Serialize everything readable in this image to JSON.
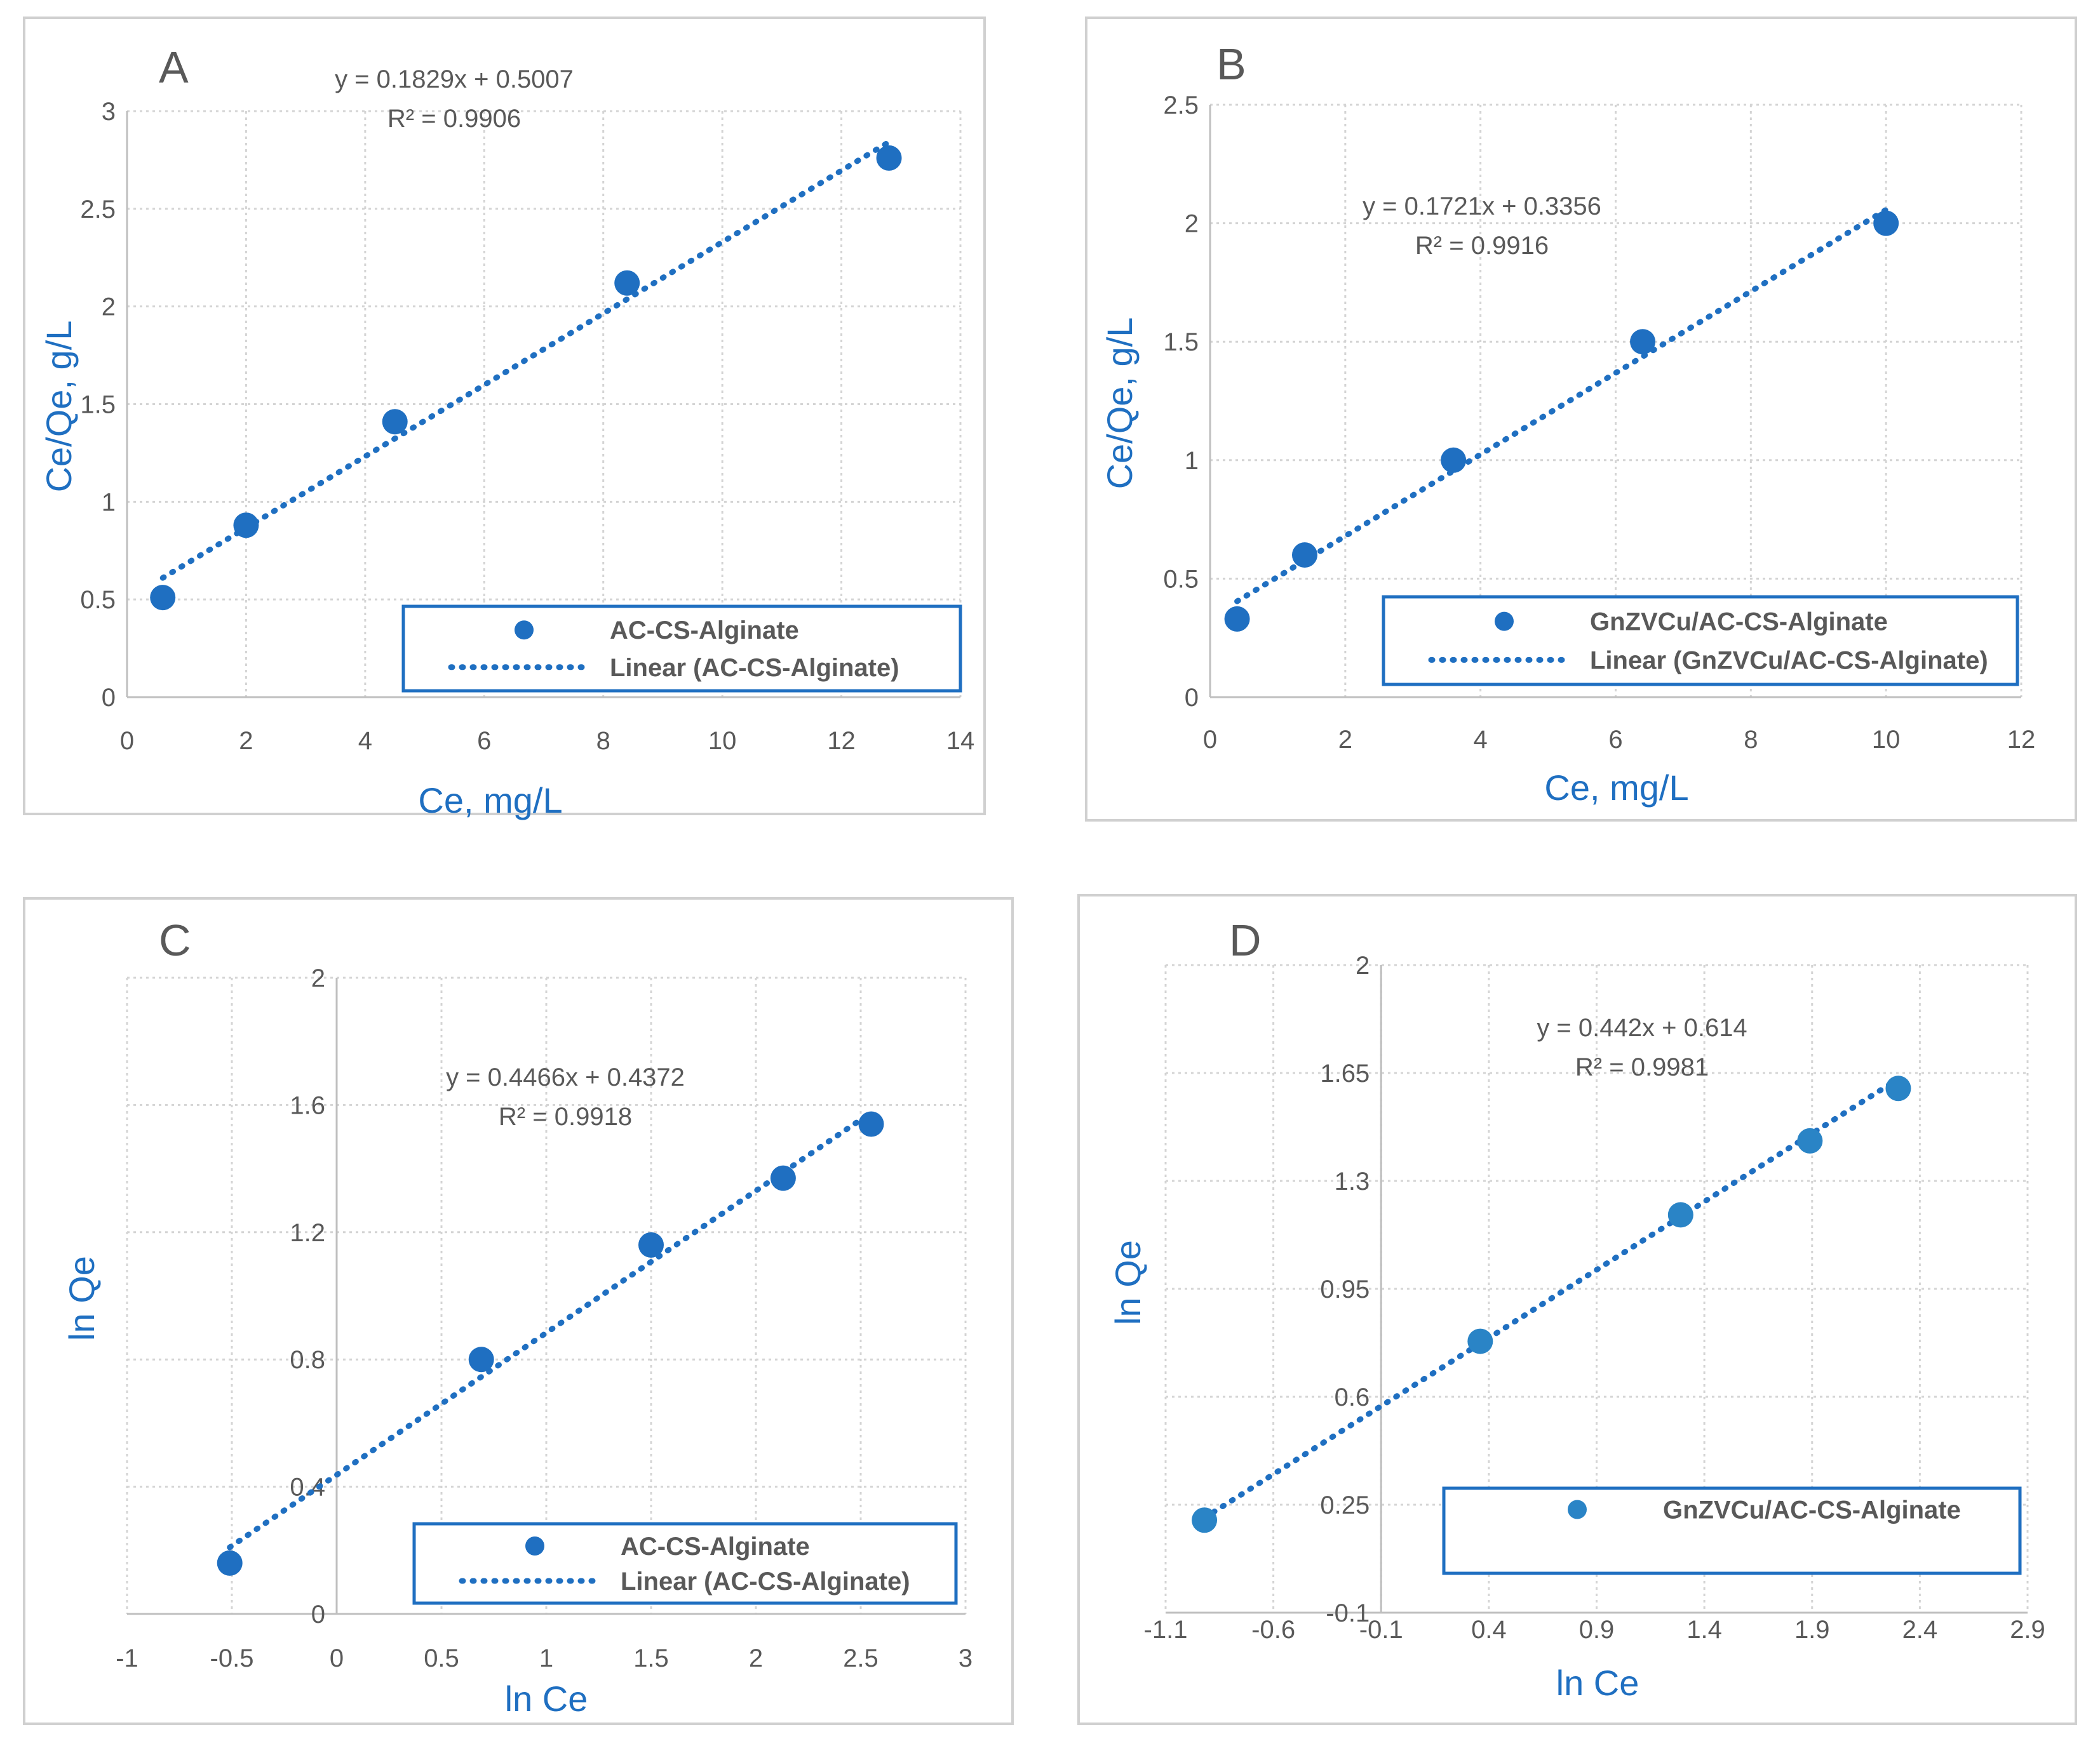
{
  "colors": {
    "series": "#1f6fc1",
    "series_d": "#2a84c6",
    "axis_title": "#1f6fc1",
    "text": "#595959",
    "grid": "#d4d4d4"
  },
  "chart_data": [
    {
      "panel": "A",
      "type": "scatter",
      "xlabel": "Ce, mg/L",
      "ylabel": "Ce/Qe, g/L",
      "xlim": [
        0,
        14
      ],
      "ylim": [
        0,
        3
      ],
      "xticks": [
        0,
        2,
        4,
        6,
        8,
        10,
        12,
        14
      ],
      "yticks": [
        0,
        0.5,
        1,
        1.5,
        2,
        2.5,
        3
      ],
      "grid": true,
      "series": [
        {
          "name": "AC-CS-Alginate",
          "x": [
            0.6,
            2.0,
            4.5,
            8.4,
            12.8
          ],
          "y": [
            0.51,
            0.88,
            1.41,
            2.12,
            2.76
          ]
        }
      ],
      "trendline": {
        "name": "Linear (AC-CS-Alginate)",
        "slope": 0.1829,
        "intercept": 0.5007,
        "x_range": [
          0.6,
          12.8
        ]
      },
      "equation": "y = 0.1829x + 0.5007",
      "r2": "R² = 0.9906",
      "legend": [
        "AC-CS-Alginate",
        "Linear (AC-CS-Alginate)"
      ],
      "legend_position": "bottom-right"
    },
    {
      "panel": "B",
      "type": "scatter",
      "xlabel": "Ce, mg/L",
      "ylabel": "Ce/Qe, g/L",
      "xlim": [
        0,
        12
      ],
      "ylim": [
        0,
        2.5
      ],
      "xticks": [
        0,
        2,
        4,
        6,
        8,
        10,
        12
      ],
      "yticks": [
        0,
        0.5,
        1,
        1.5,
        2,
        2.5
      ],
      "grid": true,
      "series": [
        {
          "name": "GnZVCu/AC-CS-Alginate",
          "x": [
            0.4,
            1.4,
            3.6,
            6.4,
            10.0
          ],
          "y": [
            0.33,
            0.6,
            1.0,
            1.5,
            2.0
          ]
        }
      ],
      "trendline": {
        "name": "Linear (GnZVCu/AC-CS-Alginate)",
        "slope": 0.1721,
        "intercept": 0.3356,
        "x_range": [
          0.4,
          10.0
        ]
      },
      "equation": "y = 0.1721x + 0.3356",
      "r2": "R² = 0.9916",
      "legend": [
        "GnZVCu/AC-CS-Alginate",
        "Linear (GnZVCu/AC-CS-Alginate)"
      ],
      "legend_position": "bottom-right"
    },
    {
      "panel": "C",
      "type": "scatter",
      "xlabel": "ln Ce",
      "ylabel": "ln Qe",
      "xlim": [
        -1,
        3
      ],
      "ylim": [
        0,
        2
      ],
      "xticks": [
        -1,
        -0.5,
        0,
        0.5,
        1,
        1.5,
        2,
        2.5,
        3
      ],
      "yticks": [
        0,
        0.4,
        0.8,
        1.2,
        1.6,
        2
      ],
      "grid": true,
      "series": [
        {
          "name": "AC-CS-Alginate",
          "x": [
            -0.51,
            0.69,
            1.5,
            2.13,
            2.55
          ],
          "y": [
            0.16,
            0.8,
            1.16,
            1.37,
            1.54
          ]
        }
      ],
      "trendline": {
        "name": "Linear (AC-CS-Alginate)",
        "slope": 0.4466,
        "intercept": 0.4372,
        "x_range": [
          -0.51,
          2.55
        ]
      },
      "equation": "y = 0.4466x + 0.4372",
      "r2": "R² = 0.9918",
      "legend": [
        "AC-CS-Alginate",
        "Linear (AC-CS-Alginate)"
      ],
      "legend_position": "bottom-right"
    },
    {
      "panel": "D",
      "type": "scatter",
      "xlabel": "ln Ce",
      "ylabel": "ln Qe",
      "xlim": [
        -1.1,
        2.9
      ],
      "ylim": [
        -0.1,
        2
      ],
      "xticks": [
        -1.1,
        -0.6,
        -0.1,
        0.4,
        0.9,
        1.4,
        1.9,
        2.4,
        2.9
      ],
      "xtick_labels": [
        "-1.1",
        "-0.6",
        "-0.1",
        "0.4",
        "0.9",
        "1.4",
        "1.9",
        "2.4",
        "2.9"
      ],
      "yticks": [
        -0.1,
        0.25,
        0.6,
        0.95,
        1.3,
        1.65,
        2
      ],
      "ytick_labels": [
        "-0.1",
        "0.25",
        "0.6",
        "0.95",
        "1.3",
        "1.65",
        "2"
      ],
      "grid": true,
      "series": [
        {
          "name": "GnZVCu/AC-CS-Alginate",
          "x": [
            -0.92,
            0.36,
            1.29,
            1.89,
            2.3
          ],
          "y": [
            0.2,
            0.78,
            1.19,
            1.43,
            1.6
          ]
        }
      ],
      "trendline": {
        "name": "",
        "slope": 0.442,
        "intercept": 0.614,
        "x_range": [
          -0.92,
          2.3
        ]
      },
      "equation": "y = 0.442x + 0.614",
      "r2": "R² = 0.9981",
      "legend": [
        "GnZVCu/AC-CS-Alginate"
      ],
      "legend_position": "bottom-right"
    }
  ]
}
